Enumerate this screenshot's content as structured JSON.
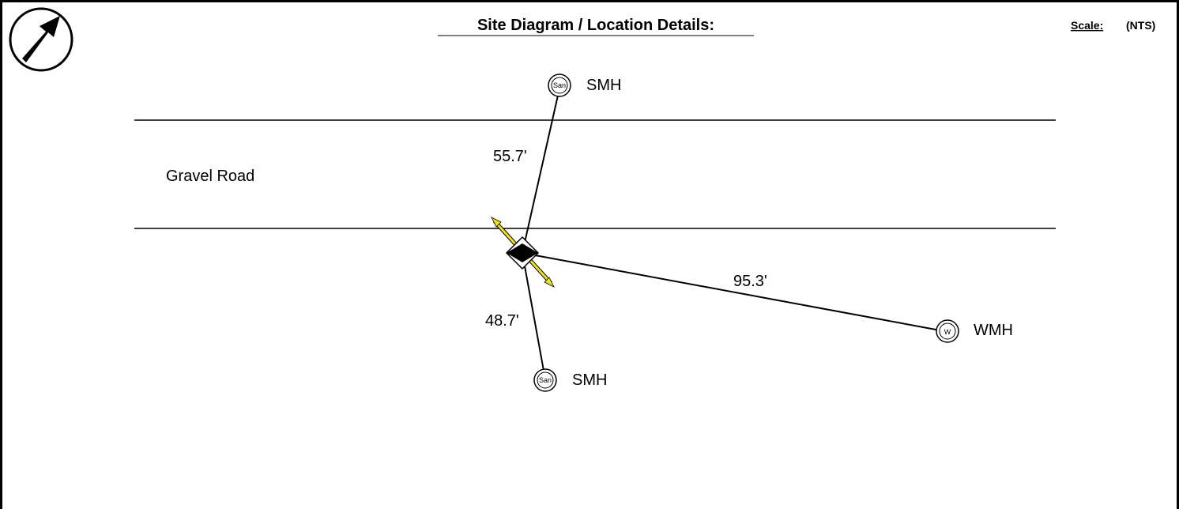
{
  "header": {
    "title": "Site Diagram / Location Details:",
    "scale_label": "Scale:",
    "scale_value": "(NTS)"
  },
  "road": {
    "label": "Gravel Road"
  },
  "nodes": [
    {
      "symbol": "San",
      "label": "SMH"
    },
    {
      "symbol": "San",
      "label": "SMH"
    },
    {
      "symbol": "W",
      "label": "WMH"
    }
  ],
  "distances": [
    "55.7'",
    "48.7'",
    "95.3'"
  ]
}
